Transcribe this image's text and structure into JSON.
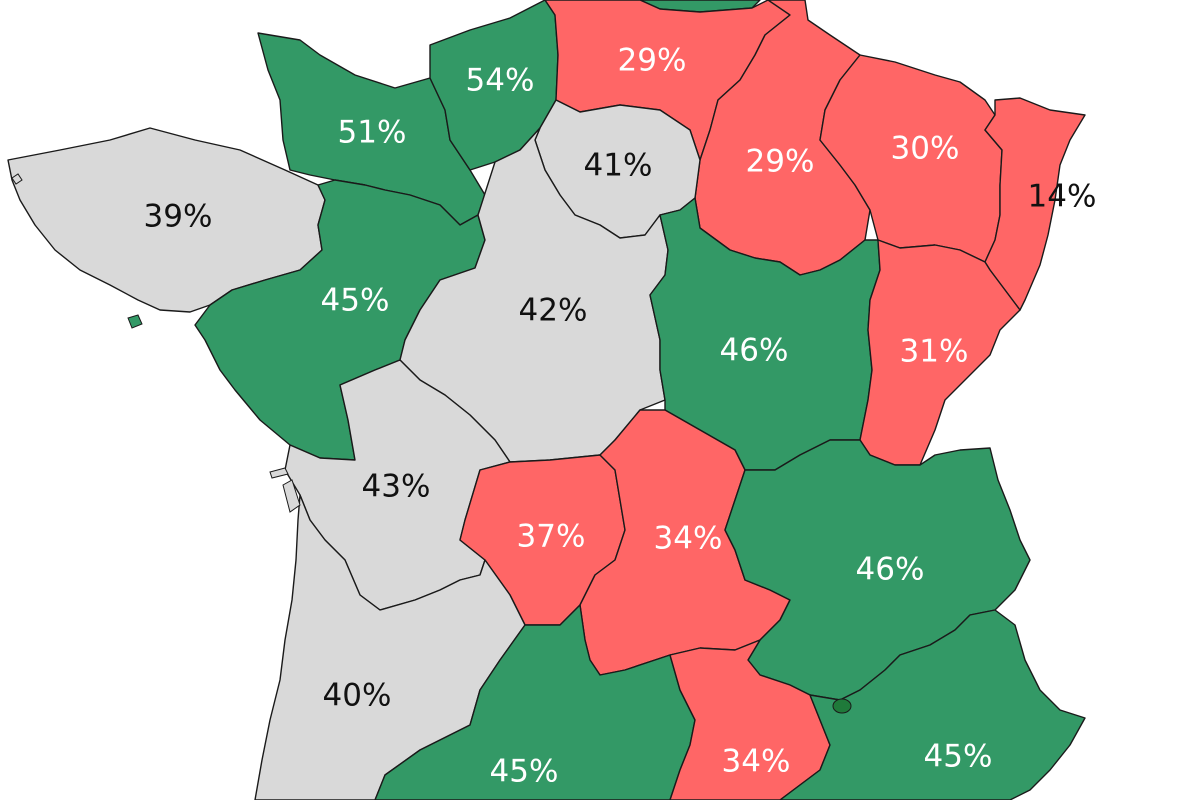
{
  "map": {
    "colors": {
      "high": "#339966",
      "low": "#ff6666",
      "neutral": "#d9d9d9",
      "border": "#1a1a1a"
    },
    "regions": [
      {
        "id": "normandie-ouest",
        "value": "51%",
        "category": "high"
      },
      {
        "id": "haute-normandie",
        "value": "54%",
        "category": "high"
      },
      {
        "id": "picardie",
        "value": "29%",
        "category": "low"
      },
      {
        "id": "champagne-ardenne",
        "value": "29%",
        "category": "low"
      },
      {
        "id": "lorraine",
        "value": "30%",
        "category": "low"
      },
      {
        "id": "alsace",
        "value": "14%",
        "category": "low"
      },
      {
        "id": "ile-de-france",
        "value": "41%",
        "category": "neutral"
      },
      {
        "id": "bretagne",
        "value": "39%",
        "category": "neutral"
      },
      {
        "id": "pays-de-la-loire",
        "value": "45%",
        "category": "high"
      },
      {
        "id": "centre",
        "value": "42%",
        "category": "neutral"
      },
      {
        "id": "bourgogne",
        "value": "46%",
        "category": "high"
      },
      {
        "id": "franche-comte",
        "value": "31%",
        "category": "low"
      },
      {
        "id": "poitou-charentes",
        "value": "43%",
        "category": "neutral"
      },
      {
        "id": "limousin",
        "value": "37%",
        "category": "low"
      },
      {
        "id": "auvergne",
        "value": "34%",
        "category": "low"
      },
      {
        "id": "rhone-alpes",
        "value": "46%",
        "category": "high"
      },
      {
        "id": "aquitaine",
        "value": "40%",
        "category": "neutral"
      },
      {
        "id": "midi-pyrenees",
        "value": "45%",
        "category": "high"
      },
      {
        "id": "languedoc-roussillon",
        "value": "34%",
        "category": "low"
      },
      {
        "id": "paca",
        "value": "45%",
        "category": "high"
      }
    ]
  }
}
